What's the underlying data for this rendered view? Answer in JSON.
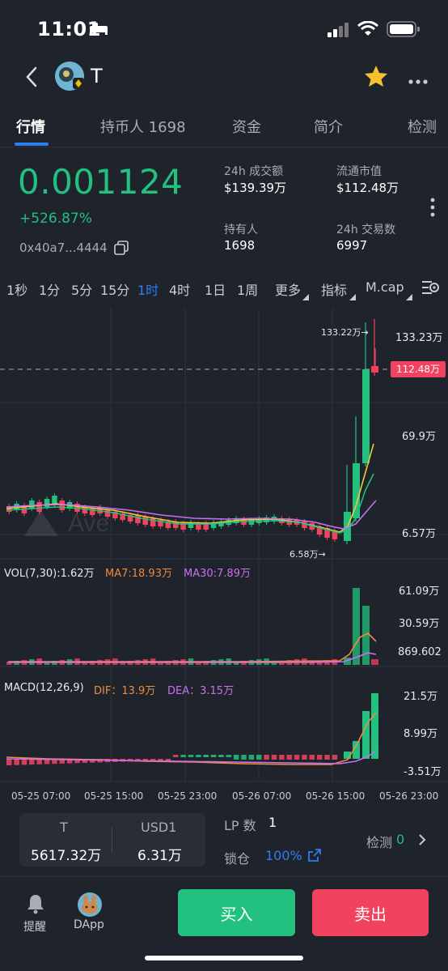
{
  "status_bar": {
    "time": "11:01"
  },
  "header": {
    "token_symbol": "T"
  },
  "tabs": [
    "行情",
    "持币人 1698",
    "资金",
    "简介",
    "检测"
  ],
  "price": {
    "value": "0.001124",
    "change": "+526.87%",
    "address": "0x40a7...4444"
  },
  "stats": [
    {
      "label": "24h 成交额",
      "value": "$139.39万"
    },
    {
      "label": "流通市值",
      "value": "$112.48万"
    },
    {
      "label": "持有人",
      "value": "1698"
    },
    {
      "label": "24h 交易数",
      "value": "6997"
    }
  ],
  "timeframes": [
    "1秒",
    "1分",
    "5分",
    "15分",
    "1时",
    "4时",
    "1日",
    "1周",
    "更多",
    "指标",
    "M.cap"
  ],
  "chart": {
    "price_axis": [
      "133.23万",
      "69.9万",
      "6.57万"
    ],
    "current_price_tag": "112.48万",
    "high_marker": "133.22万→",
    "low_marker": "6.58万→",
    "watermark": "Ave",
    "volume": {
      "title": "VOL(7,30):1.62万",
      "ma7": "MA7:18.93万",
      "ma30": "MA30:7.89万",
      "axis": [
        "61.09万",
        "30.59万",
        "869.602"
      ]
    },
    "macd": {
      "title": "MACD(12,26,9)",
      "dif": "DIF：13.9万",
      "dea": "DEA：3.15万",
      "axis": [
        "21.5万",
        "8.99万",
        "-3.51万"
      ]
    },
    "dates": [
      "05-25 07:00",
      "05-25 15:00",
      "05-25 23:00",
      "05-26 07:00",
      "05-26 15:00",
      "05-26 23:00"
    ]
  },
  "pool": {
    "token_a": "T",
    "amount_a": "5617.32万",
    "token_b": "USD1",
    "amount_b": "6.31万"
  },
  "lp": {
    "label": "LP 数",
    "value": "1"
  },
  "lock": {
    "label": "锁仓",
    "value": "100%"
  },
  "check": {
    "label": "检测",
    "value": "0"
  },
  "bottom_nav": {
    "alerts": "提醒",
    "dapp": "DApp"
  },
  "actions": {
    "buy": "买入",
    "sell": "卖出"
  },
  "colors": {
    "up": "#22c17f",
    "down": "#f2435e",
    "accent": "#2c7ff0",
    "ma7": "#f08a3c",
    "ma30": "#c870f0"
  }
}
